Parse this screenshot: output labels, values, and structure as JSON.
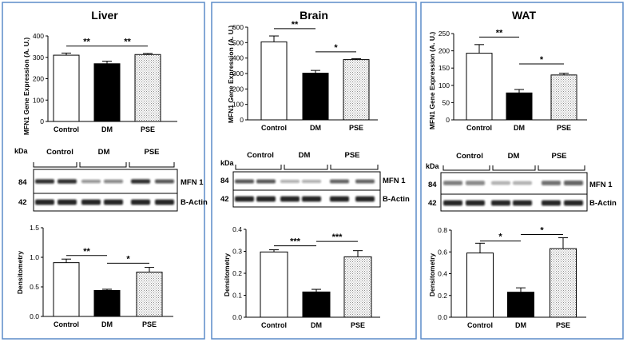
{
  "panels": [
    {
      "title": "Liver",
      "ylabel_gene": "MFN1 Gene Expression (A. U.)",
      "ylabel_dens": "Densitometry",
      "blot": {
        "kda_label": "kDa",
        "group_labels": [
          "Control",
          "DM",
          "PSE"
        ],
        "rows": [
          {
            "kda": "84",
            "protein_label": "MFN 1",
            "band_intensity": [
              0.85,
              0.85,
              0.45,
              0.5,
              0.85,
              0.7
            ]
          },
          {
            "kda": "42",
            "protein_label": "B-Actin",
            "band_intensity": [
              0.9,
              0.9,
              0.9,
              0.9,
              0.9,
              0.9
            ]
          }
        ]
      }
    },
    {
      "title": "Brain",
      "ylabel_gene": "MFN1 Gene Expression (A. U.)",
      "ylabel_dens": "Densitometry",
      "blot": {
        "kda_label": "kDa",
        "group_labels": [
          "Control",
          "DM",
          "PSE"
        ],
        "rows": [
          {
            "kda": "84",
            "protein_label": "MFN 1",
            "band_intensity": [
              0.7,
              0.7,
              0.35,
              0.35,
              0.65,
              0.65
            ]
          },
          {
            "kda": "42",
            "protein_label": "B-Actin",
            "band_intensity": [
              0.9,
              0.9,
              0.9,
              0.9,
              0.9,
              0.9
            ]
          }
        ]
      }
    },
    {
      "title": "WAT",
      "ylabel_gene": "MFN1 Gene Expression (A. U.)",
      "ylabel_dens": "Densitometry",
      "blot": {
        "kda_label": "kDa",
        "group_labels": [
          "Control",
          "DM",
          "PSE"
        ],
        "rows": [
          {
            "kda": "84",
            "protein_label": "MFN 1",
            "band_intensity": [
              0.55,
              0.5,
              0.3,
              0.3,
              0.6,
              0.65
            ]
          },
          {
            "kda": "42",
            "protein_label": "B-Actin",
            "band_intensity": [
              0.9,
              0.9,
              0.9,
              0.9,
              0.9,
              0.9
            ]
          }
        ]
      }
    }
  ],
  "colors": {
    "panel_border": "#5b8bc9",
    "control_fill": "#ffffff",
    "dm_fill": "#000000",
    "pse_fill": "#c8c8c8",
    "band": "#111111"
  },
  "chart_data": [
    {
      "type": "bar",
      "panel": "Liver",
      "title": "",
      "xlabel": "",
      "ylabel": "MFN1 Gene Expression (A. U.)",
      "categories": [
        "Control",
        "DM",
        "PSE"
      ],
      "values": [
        310,
        270,
        313
      ],
      "errors": [
        10,
        12,
        5
      ],
      "ylim": [
        0,
        400
      ],
      "yticks": [
        "0",
        "100",
        "200",
        "300",
        "400"
      ],
      "significance": [
        {
          "from": 0,
          "to": 1,
          "label": "**",
          "y": 353
        },
        {
          "from": 1,
          "to": 2,
          "label": "**",
          "y": 353
        }
      ],
      "grid": false
    },
    {
      "type": "bar",
      "panel": "Brain",
      "title": "",
      "xlabel": "",
      "ylabel": "MFN1 Gene Expression (A. U.)",
      "categories": [
        "Control",
        "DM",
        "PSE"
      ],
      "values": [
        505,
        302,
        390
      ],
      "errors": [
        38,
        18,
        6
      ],
      "ylim": [
        0,
        600
      ],
      "yticks": [
        "0",
        "100",
        "200",
        "300",
        "400",
        "500",
        "600"
      ],
      "significance": [
        {
          "from": 0,
          "to": 1,
          "label": "**",
          "y": 590
        },
        {
          "from": 1,
          "to": 2,
          "label": "*",
          "y": 440
        }
      ],
      "grid": false
    },
    {
      "type": "bar",
      "panel": "WAT",
      "title": "",
      "xlabel": "",
      "ylabel": "MFN1 Gene Expression (A. U.)",
      "categories": [
        "Control",
        "DM",
        "PSE"
      ],
      "values": [
        193,
        78,
        130
      ],
      "errors": [
        25,
        10,
        5
      ],
      "ylim": [
        0,
        250
      ],
      "yticks": [
        "0",
        "50",
        "100",
        "150",
        "200",
        "250"
      ],
      "significance": [
        {
          "from": 0,
          "to": 1,
          "label": "**",
          "y": 240
        },
        {
          "from": 1,
          "to": 2,
          "label": "*",
          "y": 162
        }
      ],
      "grid": false
    },
    {
      "type": "bar",
      "panel": "Liver",
      "title": "",
      "xlabel": "",
      "ylabel": "Densitometry",
      "categories": [
        "Control",
        "DM",
        "PSE"
      ],
      "values": [
        0.91,
        0.44,
        0.75
      ],
      "errors": [
        0.06,
        0.02,
        0.08
      ],
      "ylim": [
        0,
        1.5
      ],
      "yticks": [
        "0.0",
        "0.5",
        "1.0",
        "1.5"
      ],
      "significance": [
        {
          "from": 0,
          "to": 1,
          "label": "**",
          "y": 1.03
        },
        {
          "from": 1,
          "to": 2,
          "label": "*",
          "y": 0.9
        }
      ],
      "grid": false
    },
    {
      "type": "bar",
      "panel": "Brain",
      "title": "",
      "xlabel": "",
      "ylabel": "Densitometry",
      "categories": [
        "Control",
        "DM",
        "PSE"
      ],
      "values": [
        0.297,
        0.115,
        0.275
      ],
      "errors": [
        0.01,
        0.012,
        0.028
      ],
      "ylim": [
        0,
        0.4
      ],
      "yticks": [
        "0.0",
        "0.1",
        "0.2",
        "0.3",
        "0.4"
      ],
      "significance": [
        {
          "from": 0,
          "to": 1,
          "label": "***",
          "y": 0.325
        },
        {
          "from": 1,
          "to": 2,
          "label": "***",
          "y": 0.345
        }
      ],
      "grid": false
    },
    {
      "type": "bar",
      "panel": "WAT",
      "title": "",
      "xlabel": "",
      "ylabel": "Densitometry",
      "categories": [
        "Control",
        "DM",
        "PSE"
      ],
      "values": [
        0.59,
        0.23,
        0.63
      ],
      "errors": [
        0.09,
        0.04,
        0.1
      ],
      "ylim": [
        0,
        0.8
      ],
      "yticks": [
        "0.0",
        "0.2",
        "0.4",
        "0.6",
        "0.8"
      ],
      "significance": [
        {
          "from": 0,
          "to": 1,
          "label": "*",
          "y": 0.7
        },
        {
          "from": 1,
          "to": 2,
          "label": "*",
          "y": 0.76
        }
      ],
      "grid": false
    }
  ]
}
